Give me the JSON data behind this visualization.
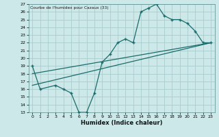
{
  "title": "Courbe de l'humidex pour Cazaux (33)",
  "xlabel": "Humidex (Indice chaleur)",
  "bg_color": "#cce8e8",
  "grid_color": "#aacccc",
  "line_color": "#1a6b6b",
  "xlim": [
    -0.5,
    23.5
  ],
  "ylim": [
    13,
    27
  ],
  "xticks": [
    0,
    1,
    2,
    3,
    4,
    5,
    6,
    7,
    8,
    9,
    10,
    11,
    12,
    13,
    14,
    15,
    16,
    17,
    18,
    19,
    20,
    21,
    22,
    23
  ],
  "yticks": [
    13,
    14,
    15,
    16,
    17,
    18,
    19,
    20,
    21,
    22,
    23,
    24,
    25,
    26,
    27
  ],
  "data_x": [
    0,
    1,
    3,
    4,
    5,
    6,
    7,
    8,
    9,
    10,
    11,
    12,
    13,
    14,
    15,
    16,
    17,
    18,
    19,
    20,
    21,
    22,
    23
  ],
  "data_y": [
    19,
    16,
    16.5,
    16,
    15.5,
    13,
    13,
    15.5,
    19.5,
    20.5,
    22,
    22.5,
    22,
    26,
    26.5,
    27,
    25.5,
    25,
    25,
    24.5,
    23.5,
    22,
    22
  ],
  "line1_x": [
    0,
    23
  ],
  "line1_y": [
    16.5,
    22
  ],
  "line2_x": [
    0,
    23
  ],
  "line2_y": [
    18.0,
    22
  ]
}
